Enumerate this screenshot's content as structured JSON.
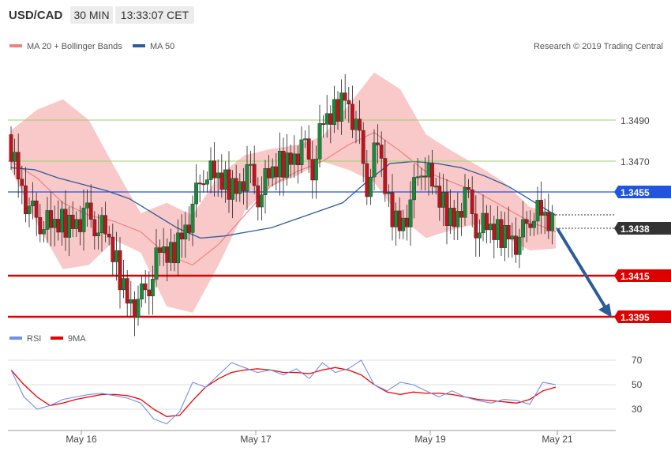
{
  "header": {
    "pair": "USD/CAD",
    "timeframe": "30 MIN",
    "time": "13:33:07 CET"
  },
  "legend": {
    "bollinger": "MA 20 + Bollinger Bands",
    "ma50": "MA 50",
    "copyright": "Research © 2019 Trading Central",
    "rsi": "RSI",
    "rsi_ma": "9MA"
  },
  "colors": {
    "band_fill": "#f9c8c8",
    "ma20": "#f08080",
    "ma50": "#2c5c9c",
    "support": "#dd0000",
    "pivot": "#2255dd",
    "last": "#333333",
    "arrow": "#2c5c9c",
    "hline_green": "#9ccf6a",
    "candle_up": "#1a8a3a",
    "candle_down": "#c0141c",
    "rsi": "#6f8fe8",
    "rsi_ma": "#ee0000"
  },
  "x_labels": [
    "May 16",
    "May 17",
    "May 19",
    "May 21"
  ],
  "price_levels": [
    {
      "value": "1.3490",
      "kind": "green"
    },
    {
      "value": "1.3470",
      "kind": "green"
    },
    {
      "value": "1.3455",
      "kind": "pivot"
    },
    {
      "value": "1.3438",
      "kind": "last"
    },
    {
      "value": "1.3415",
      "kind": "support"
    },
    {
      "value": "1.3395",
      "kind": "support"
    }
  ],
  "rsi_levels": [
    "70",
    "50",
    "30"
  ],
  "chart_data": [
    {
      "type": "line",
      "title": "USD/CAD 30 MIN",
      "y_range": [
        1.3391,
        1.3519
      ],
      "series": [
        {
          "name": "Close",
          "x_labels_at": [
            "May 16",
            "May 17",
            "May 19",
            "May 21"
          ],
          "values": [
            1.3483,
            1.3465,
            1.3445,
            1.3442,
            1.3438,
            1.344,
            1.3441,
            1.3444,
            1.3441,
            1.3435,
            1.342,
            1.3405,
            1.34,
            1.3412,
            1.3426,
            1.3424,
            1.3436,
            1.3446,
            1.3466,
            1.3462,
            1.3459,
            1.3458,
            1.3465,
            1.3455,
            1.3462,
            1.3468,
            1.3472,
            1.3477,
            1.3468,
            1.3488,
            1.3493,
            1.3503,
            1.3487,
            1.346,
            1.3478,
            1.3448,
            1.344,
            1.3448,
            1.347,
            1.3458,
            1.3448,
            1.3442,
            1.3454,
            1.344,
            1.3437,
            1.3435,
            1.3436,
            1.343,
            1.3445,
            1.3444,
            1.3438
          ]
        },
        {
          "name": "MA 50",
          "values": [
            1.3467,
            1.3466,
            1.3462,
            1.3459,
            1.3456,
            1.3452,
            1.3445,
            1.3438,
            1.3433,
            1.3434,
            1.3436,
            1.3438,
            1.3442,
            1.3446,
            1.345,
            1.346,
            1.3469,
            1.347,
            1.3469,
            1.3467,
            1.3463,
            1.3458,
            1.3451,
            1.3444
          ]
        },
        {
          "name": "MA 20 + Bollinger Bands",
          "middle": [
            1.347,
            1.3462,
            1.345,
            1.3444,
            1.3441,
            1.3436,
            1.3425,
            1.342,
            1.343,
            1.3444,
            1.3458,
            1.3465,
            1.347,
            1.3478,
            1.3484,
            1.3475,
            1.3465,
            1.346,
            1.3455,
            1.3448,
            1.3441,
            1.3436
          ],
          "upper": [
            1.3485,
            1.3495,
            1.35,
            1.349,
            1.3467,
            1.3445,
            1.345,
            1.3444,
            1.3463,
            1.3473,
            1.3476,
            1.3478,
            1.3482,
            1.3497,
            1.3513,
            1.3505,
            1.3483,
            1.3475,
            1.3468,
            1.346,
            1.3448,
            1.3445
          ],
          "lower": [
            1.3466,
            1.344,
            1.3418,
            1.342,
            1.3432,
            1.3426,
            1.34,
            1.3397,
            1.342,
            1.3446,
            1.3458,
            1.3463,
            1.347,
            1.3466,
            1.346,
            1.3443,
            1.3433,
            1.3437,
            1.344,
            1.3434,
            1.3427,
            1.3428
          ]
        }
      ]
    },
    {
      "type": "line",
      "title": "RSI",
      "y_range": [
        13,
        80
      ],
      "series": [
        {
          "name": "RSI",
          "values": [
            62,
            40,
            30,
            33,
            38,
            40,
            42,
            43,
            41,
            39,
            35,
            22,
            18,
            28,
            52,
            48,
            58,
            68,
            64,
            60,
            62,
            58,
            63,
            55,
            68,
            60,
            63,
            70,
            50,
            45,
            52,
            50,
            45,
            40,
            45,
            40,
            37,
            35,
            38,
            37,
            34,
            52,
            50
          ]
        },
        {
          "name": "9MA",
          "values": [
            62,
            50,
            40,
            33,
            35,
            38,
            40,
            42,
            42,
            41,
            38,
            30,
            24,
            25,
            37,
            48,
            55,
            60,
            62,
            63,
            62,
            60,
            60,
            59,
            62,
            64,
            62,
            58,
            50,
            44,
            42,
            44,
            43,
            43,
            42,
            40,
            38,
            37,
            36,
            35,
            38,
            45,
            48
          ]
        }
      ]
    }
  ]
}
